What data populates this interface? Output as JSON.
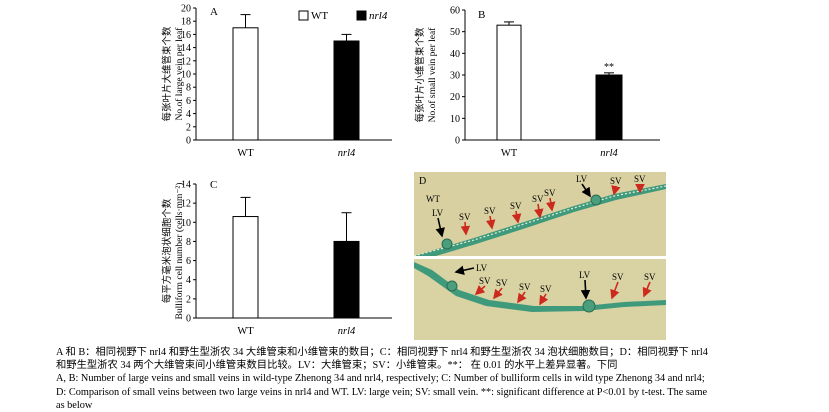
{
  "chart_data": [
    {
      "type": "bar",
      "panel": "A",
      "categories": [
        "WT",
        "nrl4"
      ],
      "values": [
        17,
        15
      ],
      "errors": [
        2,
        1
      ],
      "ylabel_cn": "每张叶片大维管束个数",
      "ylabel_en": "No.of large vein per leaf",
      "ylim": [
        0,
        20
      ],
      "yticks": [
        0,
        2,
        4,
        6,
        8,
        10,
        12,
        14,
        16,
        18,
        20
      ],
      "legend": [
        "WT",
        "nrl4"
      ],
      "legend_placement": "top",
      "colors": [
        "#ffffff",
        "#000000"
      ],
      "grid": false
    },
    {
      "type": "bar",
      "panel": "B",
      "categories": [
        "WT",
        "nrl4"
      ],
      "values": [
        53,
        30
      ],
      "errors": [
        1.5,
        1
      ],
      "annotations": [
        "",
        "**"
      ],
      "ylabel_cn": "每张叶片小维管束个数",
      "ylabel_en": "No.of small vein per leaf",
      "ylim": [
        0,
        60
      ],
      "yticks": [
        0,
        10,
        20,
        30,
        40,
        50,
        60
      ],
      "colors": [
        "#ffffff",
        "#000000"
      ],
      "grid": false
    },
    {
      "type": "bar",
      "panel": "C",
      "categories": [
        "WT",
        "nrl4"
      ],
      "values": [
        10.6,
        8
      ],
      "errors": [
        2,
        3
      ],
      "ylabel_cn": "每平方毫米泡状细胞个数",
      "ylabel_en": "Bulliform cell number (cells·mm⁻²)",
      "ylim": [
        0,
        14
      ],
      "yticks": [
        0,
        2,
        4,
        6,
        8,
        10,
        12,
        14
      ],
      "colors": [
        "#ffffff",
        "#000000"
      ],
      "grid": false
    }
  ],
  "micrograph": {
    "letter": "D",
    "top_labels": [
      "WT",
      "LV",
      "SV",
      "SV",
      "SV",
      "SV",
      "SV",
      "LV",
      "SV",
      "SV"
    ],
    "bottom_labels": [
      "LV",
      "SV",
      "SV",
      "SV",
      "SV",
      "LV",
      "SV",
      "SV"
    ],
    "arrow_colors": {
      "large_vein": "#000000",
      "small_vein": "#cc2a1e"
    },
    "background": "#d6cf9c",
    "tissue": "#3d9a7c"
  },
  "caption": {
    "cn_line1": "A 和 B：相同视野下 nrl4 和野生型浙农 34 大维管束和小维管束的数目；C：相同视野下 nrl4 和野生型浙农 34 泡状细胞数目；D：相同视野下 nrl4",
    "cn_line2": "和野生型浙农 34 两个大维管束间小维管束数目比较。LV：大维管束；SV：小维管束。**：   在 0.01 的水平上差异显著。下同",
    "en_line1": "A, B: Number of large veins and small veins    in wild-type Zhenong 34 and nrl4, respectively; C: Number of bulliform cells in wild type Zhenong 34 and nrl4;",
    "en_line2": "D: Comparison of small veins between two large veins in nrl4 and WT. LV: large vein; SV: small vein. **: significant difference at P<0.01 by t-test. The same",
    "en_line3": "as below"
  }
}
